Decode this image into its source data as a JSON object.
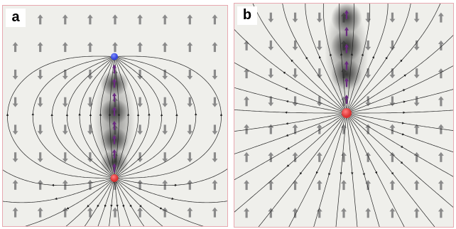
{
  "panels": {
    "a": {
      "label": "a"
    },
    "b": {
      "label": "b"
    }
  },
  "colors": {
    "background": "#efefeb",
    "border": "#e8a8b0",
    "stream_line": "#222222",
    "spin_arrow": "#8a8a8a",
    "core_arrow": "#6a2a80",
    "negative_charge": "#3344dd",
    "positive_charge": "#dd3333"
  }
}
